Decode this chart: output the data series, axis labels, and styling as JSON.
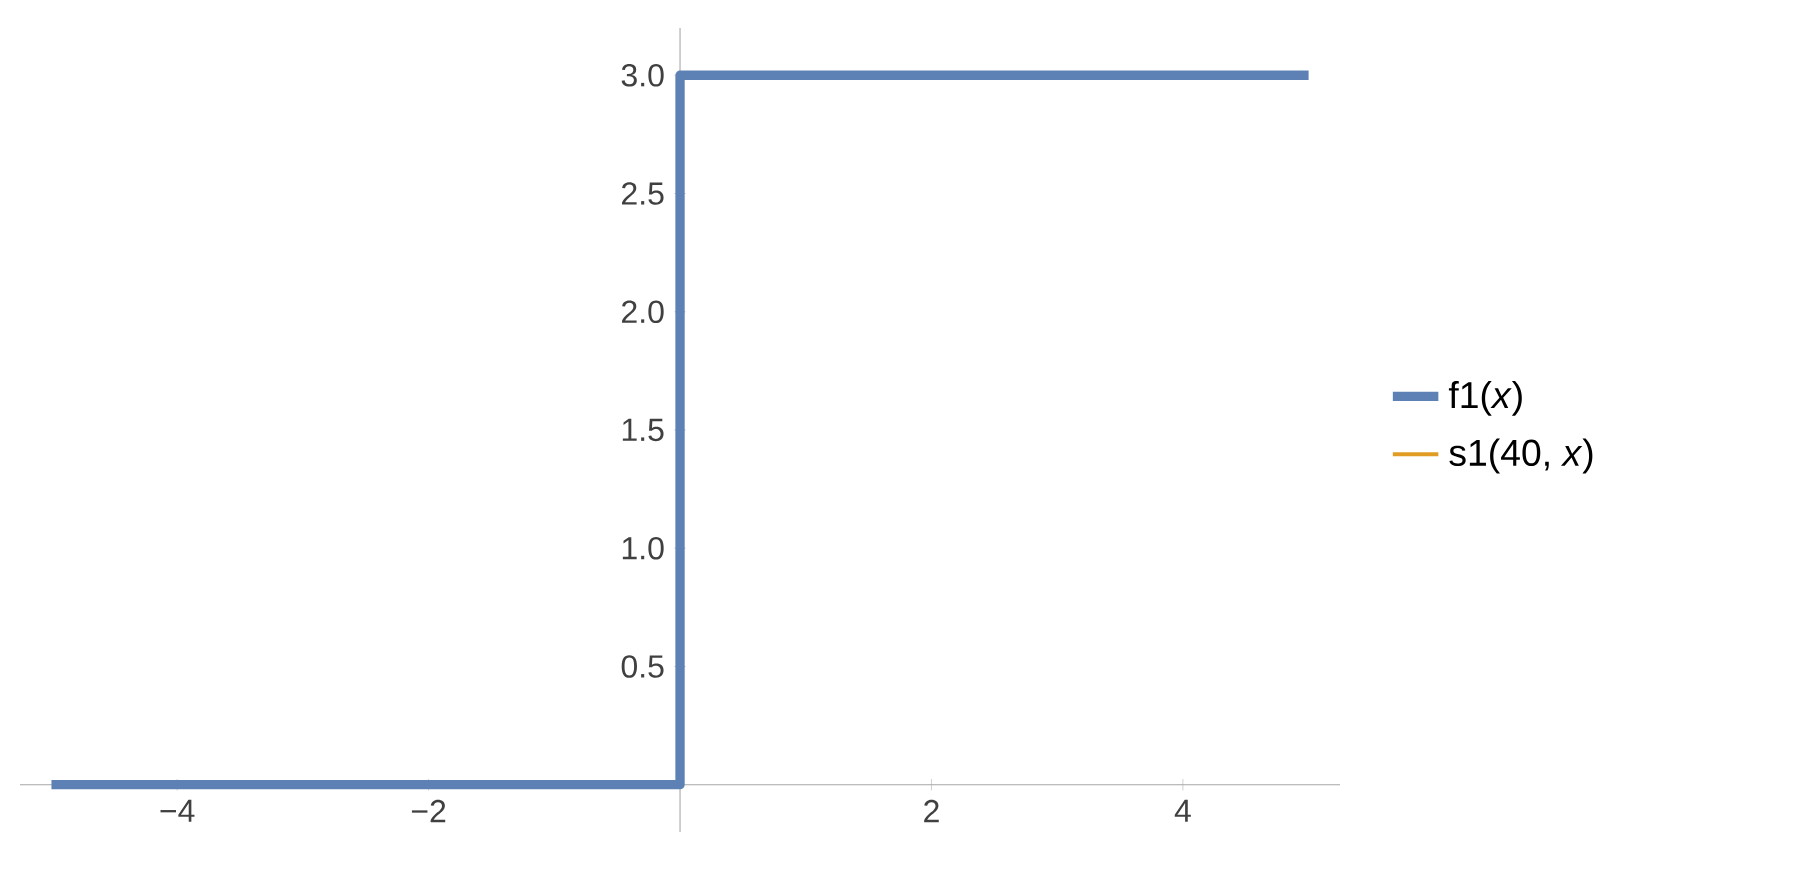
{
  "chart_data": {
    "type": "line",
    "x": [
      -5,
      0,
      0,
      5
    ],
    "series": [
      {
        "name": "f1(*x*)",
        "color": "#5e81b5",
        "values": [
          0,
          0,
          3,
          3
        ]
      },
      {
        "name": "s1(40, *x*)",
        "color": "#e19c24",
        "values": [
          null,
          null,
          null,
          null
        ]
      }
    ],
    "xlim": [
      -5.25,
      5.25
    ],
    "ylim": [
      -0.2,
      3.2
    ],
    "xticks": [
      {
        "value": -4,
        "label": "−4"
      },
      {
        "value": -2,
        "label": "−2"
      },
      2,
      4
    ],
    "yticks": [
      0.5,
      {
        "value": 1,
        "label": "1.0"
      },
      1.5,
      {
        "value": 2,
        "label": "2.0"
      },
      2.5,
      {
        "value": 3,
        "label": "3.0"
      }
    ],
    "legend": "right"
  }
}
